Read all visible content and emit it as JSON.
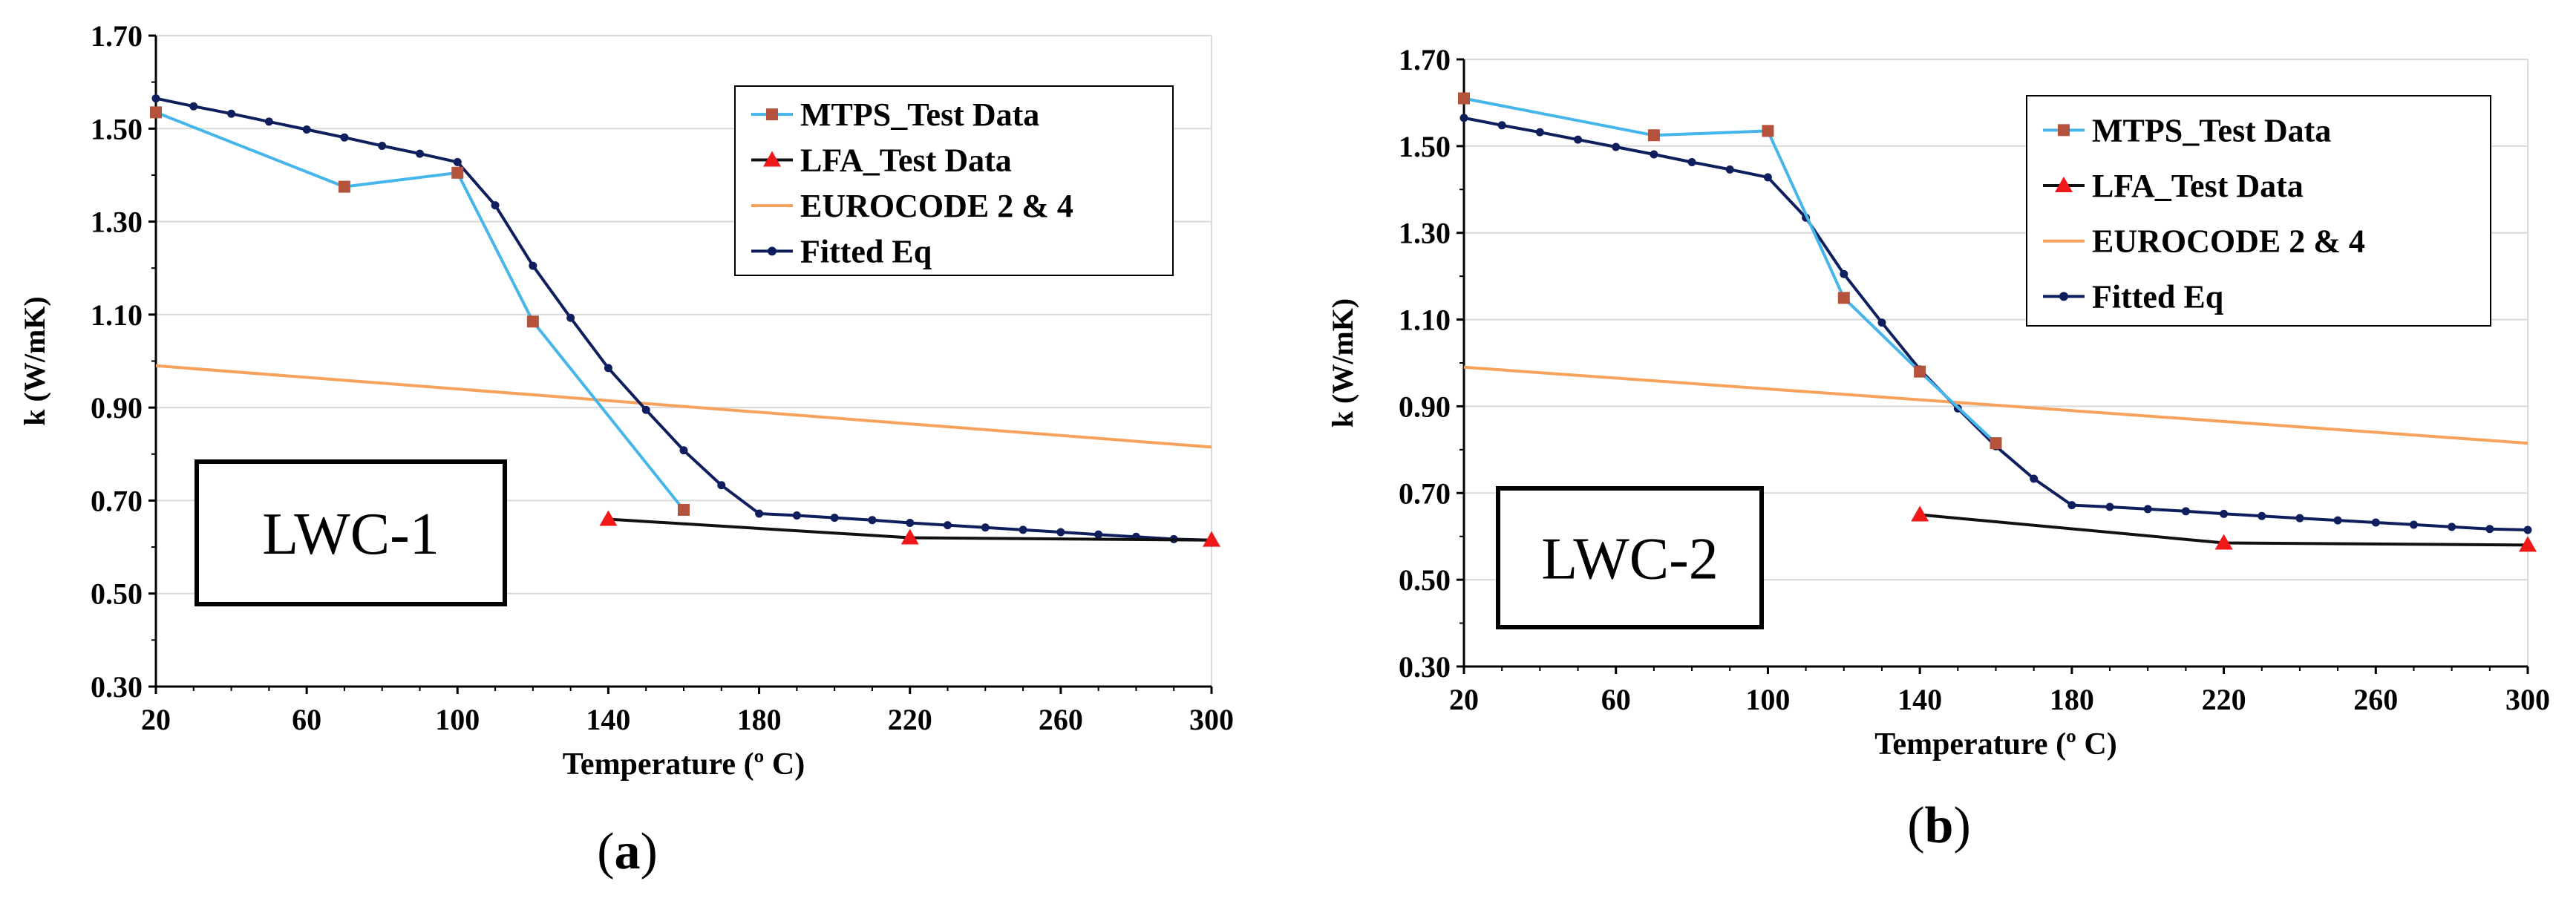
{
  "colors": {
    "mtps": "#45b5ea",
    "mtps_marker": "#b5523b",
    "lfa": "#111111",
    "lfa_marker": "#f01818",
    "eurocode": "#f7a25c",
    "fitted": "#0f1f5e"
  },
  "chart_data": [
    {
      "type": "line",
      "sample_label": "LWC-1",
      "caption": {
        "open": "(",
        "letter": "a",
        "close": ")"
      },
      "xlabel": "Temperature (º C)",
      "ylabel": "k (W/mK)",
      "xlim": [
        20,
        300
      ],
      "ylim": [
        0.3,
        1.7
      ],
      "xticks": [
        20,
        60,
        100,
        140,
        180,
        220,
        260,
        300
      ],
      "yticks": [
        "0.30",
        "0.50",
        "0.70",
        "0.90",
        "1.10",
        "1.30",
        "1.50",
        "1.70"
      ],
      "legend": [
        "MTPS_Test Data",
        "LFA_Test Data",
        "EUROCODE 2 & 4",
        "Fitted Eq"
      ],
      "series": [
        {
          "name": "MTPS_Test Data",
          "x": [
            20,
            70,
            100,
            120,
            160
          ],
          "y": [
            1.535,
            1.375,
            1.405,
            1.085,
            0.68
          ]
        },
        {
          "name": "LFA_Test Data",
          "x": [
            140,
            220,
            300
          ],
          "y": [
            0.66,
            0.62,
            0.615
          ]
        },
        {
          "name": "EUROCODE 2 & 4",
          "x": [
            20,
            300
          ],
          "y": [
            0.99,
            0.815
          ]
        },
        {
          "name": "Fitted Eq",
          "x": [
            20,
            30,
            40,
            50,
            60,
            70,
            80,
            90,
            100,
            110,
            120,
            130,
            140,
            150,
            160,
            170,
            180,
            190,
            200,
            210,
            220,
            230,
            240,
            250,
            260,
            270,
            280,
            290,
            300
          ],
          "y": [
            1.565,
            1.548,
            1.532,
            1.515,
            1.498,
            1.481,
            1.463,
            1.446,
            1.428,
            1.335,
            1.205,
            1.093,
            0.985,
            0.895,
            0.808,
            0.733,
            0.672,
            0.668,
            0.663,
            0.658,
            0.652,
            0.647,
            0.642,
            0.637,
            0.632,
            0.627,
            0.622,
            0.617,
            0.615
          ]
        }
      ]
    },
    {
      "type": "line",
      "sample_label": "LWC-2",
      "caption": {
        "open": "(",
        "letter": "b",
        "close": ")"
      },
      "xlabel": "Temperature (º C)",
      "ylabel": "k (W/mK)",
      "xlim": [
        20,
        300
      ],
      "ylim": [
        0.3,
        1.7
      ],
      "xticks": [
        20,
        60,
        100,
        140,
        180,
        220,
        260,
        300
      ],
      "yticks": [
        "0.30",
        "0.50",
        "0.70",
        "0.90",
        "1.10",
        "1.30",
        "1.50",
        "1.70"
      ],
      "legend": [
        "MTPS_Test Data",
        "LFA_Test Data",
        "EUROCODE 2 & 4",
        "Fitted Eq"
      ],
      "series": [
        {
          "name": "MTPS_Test Data",
          "x": [
            20,
            70,
            100,
            120,
            140,
            160
          ],
          "y": [
            1.61,
            1.525,
            1.535,
            1.15,
            0.98,
            0.815
          ]
        },
        {
          "name": "LFA_Test Data",
          "x": [
            140,
            220,
            300
          ],
          "y": [
            0.65,
            0.585,
            0.58
          ]
        },
        {
          "name": "EUROCODE 2 & 4",
          "x": [
            20,
            300
          ],
          "y": [
            0.99,
            0.815
          ]
        },
        {
          "name": "Fitted Eq",
          "x": [
            20,
            30,
            40,
            50,
            60,
            70,
            80,
            90,
            100,
            110,
            120,
            130,
            140,
            150,
            160,
            170,
            180,
            190,
            200,
            210,
            220,
            230,
            240,
            250,
            260,
            270,
            280,
            290,
            300
          ],
          "y": [
            1.565,
            1.548,
            1.532,
            1.515,
            1.498,
            1.481,
            1.463,
            1.446,
            1.428,
            1.335,
            1.205,
            1.093,
            0.985,
            0.895,
            0.808,
            0.733,
            0.672,
            0.668,
            0.663,
            0.658,
            0.652,
            0.647,
            0.642,
            0.637,
            0.632,
            0.627,
            0.622,
            0.617,
            0.615
          ]
        }
      ]
    }
  ]
}
